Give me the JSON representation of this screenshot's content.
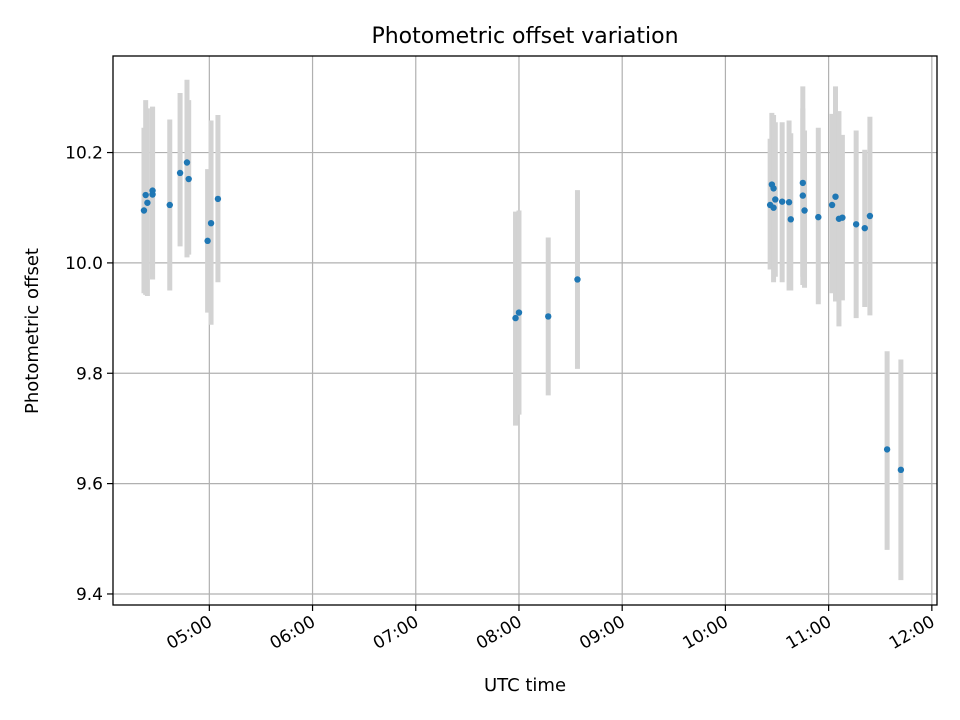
{
  "chart_data": {
    "type": "scatter",
    "title": "Photometric offset variation",
    "xlabel": "UTC time",
    "ylabel": "Photometric offset",
    "x_axis_type": "time",
    "xlim": [
      "04:04",
      "12:03"
    ],
    "ylim": [
      9.38,
      10.375
    ],
    "x_ticks": [
      "05:00",
      "06:00",
      "07:00",
      "08:00",
      "09:00",
      "10:00",
      "11:00",
      "12:00"
    ],
    "y_ticks": [
      9.4,
      9.6,
      9.8,
      10.0,
      10.2
    ],
    "y_tick_labels": [
      "9.4",
      "9.6",
      "9.8",
      "10.0",
      "10.2"
    ],
    "grid": true,
    "marker_color": "#1f77b4",
    "errorbar_color": "#d3d3d3",
    "points": [
      {
        "x": "04:22",
        "y": 10.095,
        "low": 9.945,
        "high": 10.245
      },
      {
        "x": "04:23",
        "y": 10.123,
        "low": 9.942,
        "high": 10.295
      },
      {
        "x": "04:24",
        "y": 10.109,
        "low": 9.94,
        "high": 10.28
      },
      {
        "x": "04:27",
        "y": 10.131,
        "low": 9.97,
        "high": 10.283
      },
      {
        "x": "04:27",
        "y": 10.124,
        "low": 9.97,
        "high": 10.283
      },
      {
        "x": "04:37",
        "y": 10.105,
        "low": 9.95,
        "high": 10.26
      },
      {
        "x": "04:43",
        "y": 10.163,
        "low": 10.03,
        "high": 10.308
      },
      {
        "x": "04:47",
        "y": 10.182,
        "low": 10.01,
        "high": 10.332
      },
      {
        "x": "04:48",
        "y": 10.152,
        "low": 10.015,
        "high": 10.295
      },
      {
        "x": "04:59",
        "y": 10.04,
        "low": 9.91,
        "high": 10.17
      },
      {
        "x": "05:01",
        "y": 10.072,
        "low": 9.888,
        "high": 10.258
      },
      {
        "x": "05:05",
        "y": 10.116,
        "low": 9.965,
        "high": 10.268
      },
      {
        "x": "07:58",
        "y": 9.9,
        "low": 9.705,
        "high": 10.093
      },
      {
        "x": "08:00",
        "y": 9.91,
        "low": 9.725,
        "high": 10.095
      },
      {
        "x": "08:17",
        "y": 9.903,
        "low": 9.76,
        "high": 10.046
      },
      {
        "x": "08:34",
        "y": 9.97,
        "low": 9.808,
        "high": 10.132
      },
      {
        "x": "10:26",
        "y": 10.105,
        "low": 9.988,
        "high": 10.225
      },
      {
        "x": "10:27",
        "y": 10.142,
        "low": 10.0,
        "high": 10.272
      },
      {
        "x": "10:28",
        "y": 10.135,
        "low": 10.0,
        "high": 10.268
      },
      {
        "x": "10:28",
        "y": 10.1,
        "low": 9.965,
        "high": 10.24
      },
      {
        "x": "10:29",
        "y": 10.115,
        "low": 9.975,
        "high": 10.255
      },
      {
        "x": "10:33",
        "y": 10.111,
        "low": 9.965,
        "high": 10.255
      },
      {
        "x": "10:37",
        "y": 10.11,
        "low": 9.95,
        "high": 10.258
      },
      {
        "x": "10:38",
        "y": 10.079,
        "low": 9.95,
        "high": 10.235
      },
      {
        "x": "10:45",
        "y": 10.122,
        "low": 9.96,
        "high": 10.28
      },
      {
        "x": "10:45",
        "y": 10.145,
        "low": 9.975,
        "high": 10.32
      },
      {
        "x": "10:46",
        "y": 10.095,
        "low": 9.955,
        "high": 10.24
      },
      {
        "x": "10:54",
        "y": 10.083,
        "low": 9.925,
        "high": 10.245
      },
      {
        "x": "11:02",
        "y": 10.105,
        "low": 9.945,
        "high": 10.27
      },
      {
        "x": "11:04",
        "y": 10.12,
        "low": 9.93,
        "high": 10.32
      },
      {
        "x": "11:06",
        "y": 10.08,
        "low": 9.885,
        "high": 10.275
      },
      {
        "x": "11:08",
        "y": 10.082,
        "low": 9.932,
        "high": 10.232
      },
      {
        "x": "11:16",
        "y": 10.07,
        "low": 9.9,
        "high": 10.24
      },
      {
        "x": "11:21",
        "y": 10.063,
        "low": 9.92,
        "high": 10.205
      },
      {
        "x": "11:24",
        "y": 10.085,
        "low": 9.905,
        "high": 10.265
      },
      {
        "x": "11:34",
        "y": 9.662,
        "low": 9.48,
        "high": 9.84
      },
      {
        "x": "11:42",
        "y": 9.625,
        "low": 9.425,
        "high": 9.825
      }
    ]
  }
}
